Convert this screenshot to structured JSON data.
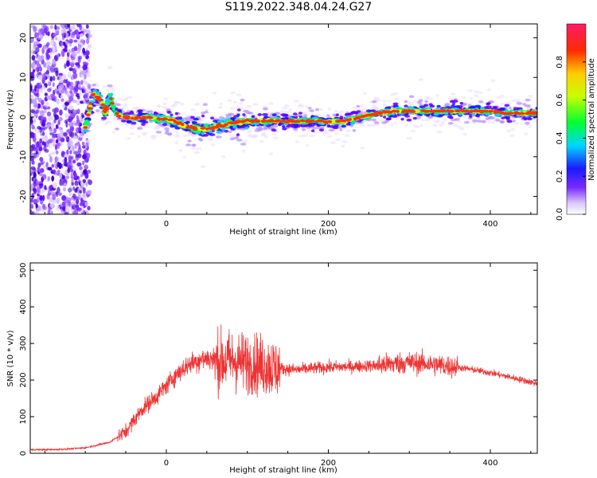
{
  "title": "S119.2022.348.04.24.G27",
  "chart_data": [
    {
      "type": "heatmap",
      "xlabel": "Height of straight line (km)",
      "ylabel": "Frequency (Hz)",
      "xlim": [
        -168,
        458
      ],
      "ylim": [
        -24.5,
        23.5
      ],
      "xticks": [
        0,
        200,
        400
      ],
      "yticks": [
        -20,
        -10,
        0,
        10,
        20
      ],
      "grid": false,
      "ridge": {
        "height_km": [
          -100,
          -95,
          -90,
          -85,
          -80,
          -75,
          -70,
          -65,
          -60,
          -50,
          -40,
          -30,
          -20,
          -10,
          0,
          10,
          20,
          30,
          40,
          50,
          60,
          70,
          80,
          90,
          100,
          120,
          140,
          160,
          180,
          200,
          220,
          240,
          260,
          280,
          300,
          320,
          340,
          360,
          380,
          400,
          420,
          440,
          458
        ],
        "frequency_hz": [
          -3,
          2,
          6,
          5,
          4,
          1,
          6,
          2,
          0.5,
          0,
          -0.3,
          -0.2,
          0,
          -0.5,
          -0.5,
          -1,
          -2,
          -2.5,
          -3,
          -3,
          -2.5,
          -2,
          -1.5,
          -1.2,
          -1,
          -1,
          -1,
          -1,
          -1,
          -1.2,
          -1,
          0,
          1,
          1.5,
          1.5,
          1.5,
          1.5,
          1.5,
          1.5,
          1.5,
          1,
          1,
          1
        ]
      },
      "noise_region_km": [
        -168,
        -100
      ],
      "colorbar": {
        "label": "Normalized spectral amplitude",
        "ticks": [
          0.0,
          0.2,
          0.4,
          0.6,
          0.8
        ],
        "range": [
          0,
          1
        ]
      }
    },
    {
      "type": "line",
      "xlabel": "Height of straight line (km)",
      "ylabel": "SNR (10 * v/v)",
      "xlim": [
        -168,
        458
      ],
      "ylim": [
        0,
        520
      ],
      "xticks": [
        0,
        200,
        400
      ],
      "yticks": [
        0,
        100,
        200,
        300,
        400,
        500
      ],
      "grid": false,
      "series": [
        {
          "color": "#ee3333",
          "x": [
            -168,
            -140,
            -120,
            -100,
            -90,
            -80,
            -70,
            -60,
            -50,
            -40,
            -30,
            -20,
            -10,
            0,
            10,
            20,
            30,
            40,
            50,
            60,
            70,
            80,
            90,
            100,
            110,
            120,
            130,
            140,
            150,
            160,
            180,
            200,
            220,
            240,
            260,
            280,
            300,
            320,
            340,
            360,
            380,
            400,
            420,
            440,
            458
          ],
          "y": [
            10,
            10,
            12,
            15,
            20,
            25,
            30,
            45,
            60,
            90,
            120,
            140,
            160,
            185,
            210,
            230,
            245,
            255,
            260,
            255,
            250,
            255,
            250,
            248,
            245,
            240,
            235,
            232,
            230,
            228,
            232,
            235,
            236,
            238,
            240,
            245,
            248,
            245,
            240,
            235,
            228,
            220,
            210,
            200,
            190
          ]
        }
      ]
    }
  ]
}
